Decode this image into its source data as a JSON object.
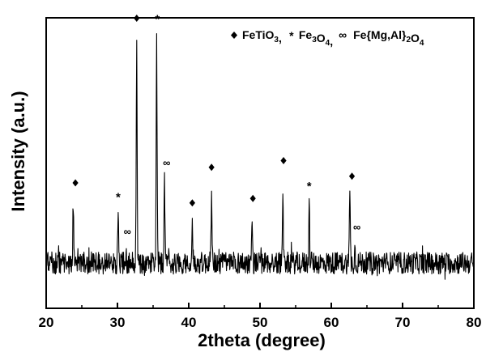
{
  "chart_data": {
    "type": "line",
    "title": "",
    "xlabel": "2theta (degree)",
    "ylabel": "Intensity (a.u.)",
    "xlim": [
      20,
      80
    ],
    "x_ticks": [
      20,
      30,
      40,
      50,
      60,
      70,
      80
    ],
    "y_ticks_shown": false,
    "grid": false,
    "legend_position": "top-right",
    "legend": [
      {
        "symbol": "♦",
        "symbol_name": "diamond-icon",
        "label_parts": [
          [
            "FeTiO",
            "n"
          ],
          [
            "3",
            "sub"
          ],
          [
            ",",
            "n"
          ]
        ]
      },
      {
        "symbol": "*",
        "symbol_name": "asterisk-icon",
        "label_parts": [
          [
            "Fe",
            "n"
          ],
          [
            "3",
            "sub"
          ],
          [
            "O",
            "n"
          ],
          [
            "4",
            "sub"
          ],
          [
            ",",
            "n"
          ]
        ]
      },
      {
        "symbol": "∞",
        "symbol_name": "infinity-icon",
        "label_parts": [
          [
            "Fe{Mg,Al}",
            "n"
          ],
          [
            "2",
            "sub"
          ],
          [
            "O",
            "n"
          ],
          [
            "4",
            "sub"
          ]
        ]
      }
    ],
    "series": [
      {
        "baseline": 0.0,
        "noise_amplitude": 0.05,
        "peaks": [
          {
            "x": 23.8,
            "height": 0.27,
            "phase": "FeTiO3",
            "marker": "♦"
          },
          {
            "x": 30.1,
            "height": 0.21,
            "phase": "Fe3O4",
            "marker": "*"
          },
          {
            "x": 31.2,
            "height": 0.04,
            "phase": "Fe{Mg,Al}2O4",
            "marker": "∞"
          },
          {
            "x": 32.7,
            "height": 1.0,
            "phase": "FeTiO3",
            "marker": "♦"
          },
          {
            "x": 35.5,
            "height": 1.0,
            "phase": "Fe3O4",
            "marker": "*"
          },
          {
            "x": 36.6,
            "height": 0.36,
            "phase": "Fe{Mg,Al}2O4",
            "marker": "∞"
          },
          {
            "x": 40.5,
            "height": 0.18,
            "phase": "FeTiO3",
            "marker": "♦"
          },
          {
            "x": 43.2,
            "height": 0.34,
            "phase": "FeTiO3",
            "marker": "♦"
          },
          {
            "x": 48.9,
            "height": 0.2,
            "phase": "FeTiO3",
            "marker": "♦"
          },
          {
            "x": 53.2,
            "height": 0.36,
            "phase": "FeTiO3",
            "marker": "♦"
          },
          {
            "x": 56.9,
            "height": 0.26,
            "phase": "Fe3O4",
            "marker": "*"
          },
          {
            "x": 62.6,
            "height": 0.3,
            "phase": "FeTiO3",
            "marker": "♦"
          },
          {
            "x": 63.3,
            "height": 0.06,
            "phase": "Fe{Mg,Al}2O4",
            "marker": "∞"
          }
        ]
      }
    ],
    "peak_markers": [
      {
        "symbol": "♦",
        "x": 24.1,
        "level": 0.36
      },
      {
        "symbol": "*",
        "x": 30.1,
        "level": 0.3
      },
      {
        "symbol": "∞",
        "x": 31.4,
        "level": 0.14
      },
      {
        "symbol": "♦",
        "x": 32.7,
        "level": 1.1
      },
      {
        "symbol": "*",
        "x": 35.6,
        "level": 1.1
      },
      {
        "symbol": "∞",
        "x": 36.9,
        "level": 0.45
      },
      {
        "symbol": "♦",
        "x": 40.5,
        "level": 0.27
      },
      {
        "symbol": "♦",
        "x": 43.2,
        "level": 0.43
      },
      {
        "symbol": "♦",
        "x": 49.0,
        "level": 0.29
      },
      {
        "symbol": "♦",
        "x": 53.3,
        "level": 0.46
      },
      {
        "symbol": "*",
        "x": 56.9,
        "level": 0.35
      },
      {
        "symbol": "♦",
        "x": 62.9,
        "level": 0.39
      },
      {
        "symbol": "∞",
        "x": 63.6,
        "level": 0.16
      }
    ]
  }
}
